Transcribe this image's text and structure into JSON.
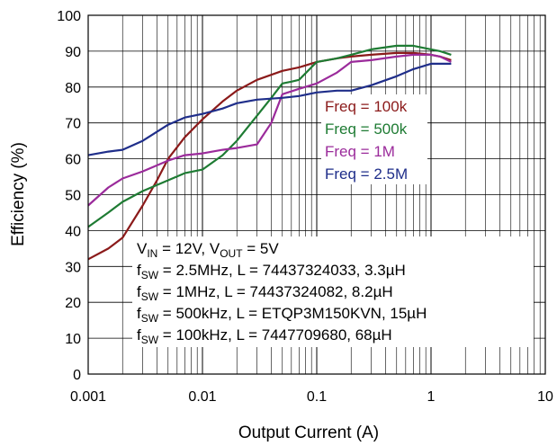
{
  "chart_data": {
    "type": "line",
    "xlabel": "Output Current (A)",
    "ylabel": "Efficiency (%)",
    "xscale": "log",
    "xlim": [
      0.001,
      10
    ],
    "ylim": [
      0,
      100
    ],
    "xticks": [
      0.001,
      0.01,
      0.1,
      1,
      10
    ],
    "xtick_labels": [
      "0.001",
      "0.01",
      "0.1",
      "1",
      "10"
    ],
    "yticks": [
      0,
      10,
      20,
      30,
      40,
      50,
      60,
      70,
      80,
      90,
      100
    ],
    "grid": true,
    "legend_position": "center-right",
    "series": [
      {
        "name": "Freq = 100k",
        "color": "#8B1A1A",
        "x": [
          0.001,
          0.0015,
          0.002,
          0.003,
          0.004,
          0.005,
          0.007,
          0.01,
          0.015,
          0.02,
          0.03,
          0.05,
          0.07,
          0.1,
          0.15,
          0.2,
          0.3,
          0.5,
          0.7,
          1.0,
          1.2,
          1.5
        ],
        "y": [
          32,
          35,
          38,
          47,
          54,
          60,
          66,
          71,
          76,
          79,
          82,
          84.5,
          85.5,
          87,
          88,
          88.5,
          89,
          89.5,
          89.5,
          89,
          88.5,
          87.5
        ]
      },
      {
        "name": "Freq = 500k",
        "color": "#1E7B33",
        "x": [
          0.001,
          0.0015,
          0.002,
          0.003,
          0.005,
          0.007,
          0.01,
          0.015,
          0.02,
          0.03,
          0.04,
          0.05,
          0.06,
          0.07,
          0.1,
          0.15,
          0.2,
          0.3,
          0.5,
          0.7,
          1.0,
          1.2,
          1.5
        ],
        "y": [
          41,
          45,
          48,
          51,
          54,
          56,
          57,
          61,
          65,
          72,
          77,
          81,
          81.5,
          82,
          87,
          88,
          89,
          90.5,
          91.5,
          91.5,
          90.5,
          90,
          89
        ]
      },
      {
        "name": "Freq = 1M",
        "color": "#9B2B9B",
        "x": [
          0.001,
          0.0015,
          0.002,
          0.003,
          0.005,
          0.007,
          0.01,
          0.015,
          0.02,
          0.03,
          0.04,
          0.05,
          0.07,
          0.1,
          0.15,
          0.2,
          0.3,
          0.5,
          0.7,
          1.0,
          1.2,
          1.5
        ],
        "y": [
          47,
          52,
          54.5,
          56.5,
          59.5,
          61,
          61.5,
          62.5,
          63,
          64,
          70,
          78,
          79.5,
          81,
          84,
          87,
          87.5,
          88.5,
          89,
          89,
          88.5,
          87
        ]
      },
      {
        "name": "Freq = 2.5M",
        "color": "#1F2E8A",
        "x": [
          0.001,
          0.0015,
          0.002,
          0.003,
          0.005,
          0.007,
          0.01,
          0.015,
          0.02,
          0.03,
          0.05,
          0.07,
          0.1,
          0.15,
          0.2,
          0.3,
          0.5,
          0.7,
          1.0,
          1.2,
          1.5
        ],
        "y": [
          61,
          62,
          62.5,
          65,
          69.5,
          71.5,
          72.5,
          74,
          75.5,
          76.5,
          77,
          77.5,
          78.5,
          79,
          79,
          80.5,
          83,
          85,
          86.5,
          86.5,
          86.5
        ]
      }
    ],
    "annotations": [
      [
        "V",
        "IN",
        " = 12V, V",
        "OUT",
        " = 5V"
      ],
      [
        "f",
        "SW",
        " = 2.5MHz, L = 74437324033, 3.3µH"
      ],
      [
        "f",
        "SW",
        " = 1MHz, L = 74437324082, 8.2µH"
      ],
      [
        "f",
        "SW",
        " = 500kHz, L = ETQP3M150KVN, 15µH"
      ],
      [
        "f",
        "SW",
        " = 100kHz, L = 7447709680, 68µH"
      ]
    ]
  }
}
